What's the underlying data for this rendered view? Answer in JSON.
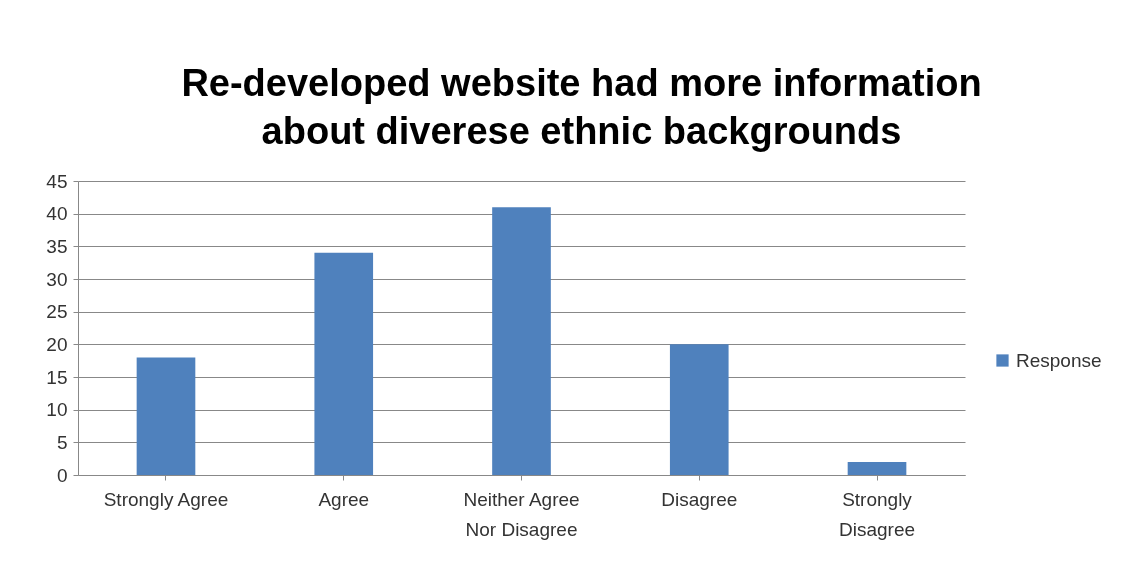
{
  "chart_data": {
    "type": "bar",
    "title": "Re-developed website had more information\nabout diverese ethnic backgrounds",
    "categories": [
      "Strongly Agree",
      "Agree",
      "Neither Agree\nNor Disagree",
      "Disagree",
      "Strongly\nDisagree"
    ],
    "series": [
      {
        "name": "Response",
        "color": "#4f81bd",
        "values": [
          18,
          34,
          41,
          20,
          2
        ]
      }
    ],
    "ylim": [
      0,
      45
    ],
    "yticks": [
      0,
      5,
      10,
      15,
      20,
      25,
      30,
      35,
      40,
      45
    ],
    "grid": "y",
    "legend": "right"
  }
}
